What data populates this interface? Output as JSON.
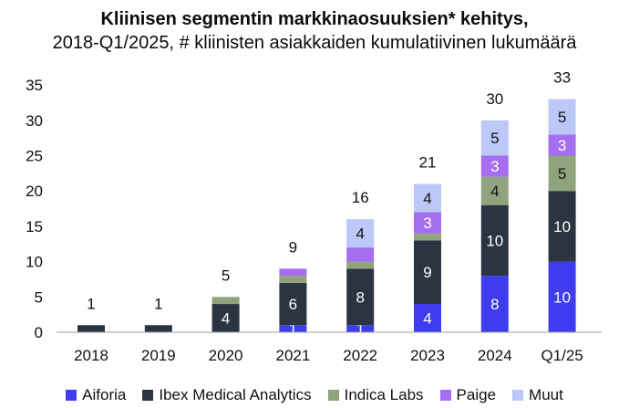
{
  "chart_data": {
    "type": "bar",
    "stacked": true,
    "title": "Kliinisen segmentin markkinaosuuksien* kehitys,",
    "subtitle": "2018-Q1/2025, # kliinisten asiakkaiden kumulatiivinen lukumäärä",
    "xlabel": "",
    "ylabel": "",
    "ylim": [
      0,
      35
    ],
    "yticks": [
      0,
      5,
      10,
      15,
      20,
      25,
      30,
      35
    ],
    "grid": false,
    "legend_position": "bottom",
    "categories": [
      "2018",
      "2019",
      "2020",
      "2021",
      "2022",
      "2023",
      "2024",
      "Q1/25"
    ],
    "totals": [
      1,
      1,
      5,
      9,
      16,
      21,
      30,
      33
    ],
    "series": [
      {
        "name": "Aiforia",
        "color": "#3f3cf0",
        "text_color": "#ffffff",
        "values": [
          0,
          0,
          0,
          1,
          1,
          4,
          8,
          10
        ],
        "labels": [
          "",
          "",
          "",
          "1",
          "1",
          "4",
          "8",
          "10"
        ]
      },
      {
        "name": "Ibex Medical Analytics",
        "color": "#2b3440",
        "text_color": "#ffffff",
        "values": [
          1,
          1,
          4,
          6,
          8,
          9,
          10,
          10
        ],
        "labels": [
          "",
          "",
          "4",
          "6",
          "8",
          "9",
          "10",
          "10"
        ]
      },
      {
        "name": "Indica Labs",
        "color": "#8fa37c",
        "text_color": "#111111",
        "values": [
          0,
          0,
          1,
          1,
          1,
          1,
          4,
          5
        ],
        "labels": [
          "",
          "",
          "",
          "",
          "",
          "",
          "4",
          "5"
        ]
      },
      {
        "name": "Paige",
        "color": "#a56ef0",
        "text_color": "#ffffff",
        "values": [
          0,
          0,
          0,
          1,
          2,
          3,
          3,
          3
        ],
        "labels": [
          "",
          "",
          "",
          "",
          "",
          "3",
          "3",
          "3"
        ]
      },
      {
        "name": "Muut",
        "color": "#bcc8f7",
        "text_color": "#111111",
        "values": [
          0,
          0,
          0,
          0,
          4,
          4,
          5,
          5
        ],
        "labels": [
          "",
          "",
          "",
          "",
          "4",
          "4",
          "5",
          "5"
        ]
      }
    ]
  }
}
